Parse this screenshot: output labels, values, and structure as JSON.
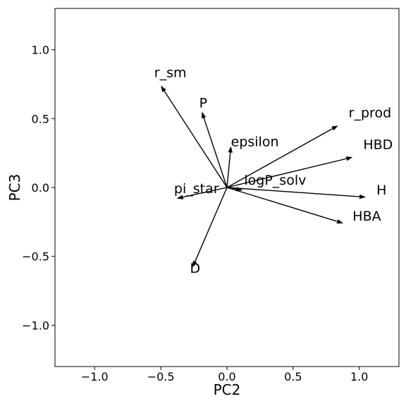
{
  "chart_data": {
    "type": "biplot",
    "xlabel": "PC2",
    "ylabel": "PC3",
    "xlim": [
      -1.3,
      1.3
    ],
    "ylim": [
      -1.3,
      1.3
    ],
    "xticks": [
      -1.0,
      -0.5,
      0.0,
      0.5,
      1.0
    ],
    "yticks": [
      -1.0,
      -0.5,
      0.0,
      0.5,
      1.0
    ],
    "xtick_labels": [
      "−1.0",
      "−0.5",
      "0.0",
      "0.5",
      "1.0"
    ],
    "ytick_labels": [
      "−1.0",
      "−0.5",
      "0.0",
      "0.5",
      "1.0"
    ],
    "grid": false,
    "vectors": [
      {
        "name": "r_sm",
        "x": -0.5,
        "y": 0.74,
        "label_x": -0.55,
        "label_y": 0.8
      },
      {
        "name": "P",
        "x": -0.19,
        "y": 0.55,
        "label_x": -0.21,
        "label_y": 0.58
      },
      {
        "name": "epsilon",
        "x": 0.03,
        "y": 0.3,
        "label_x": 0.03,
        "label_y": 0.3
      },
      {
        "name": "r_prod",
        "x": 0.84,
        "y": 0.45,
        "label_x": 0.92,
        "label_y": 0.51
      },
      {
        "name": "HBD",
        "x": 0.95,
        "y": 0.22,
        "label_x": 1.03,
        "label_y": 0.28
      },
      {
        "name": "H",
        "x": 1.05,
        "y": -0.07,
        "label_x": 1.13,
        "label_y": -0.05
      },
      {
        "name": "HBA",
        "x": 0.88,
        "y": -0.26,
        "label_x": 0.95,
        "label_y": -0.24
      },
      {
        "name": "logP_solv",
        "x": 0.12,
        "y": -0.02,
        "label_x": 0.13,
        "label_y": 0.02
      },
      {
        "name": "pi_star",
        "x": -0.38,
        "y": -0.08,
        "label_x": -0.4,
        "label_y": -0.04
      },
      {
        "name": "D",
        "x": -0.26,
        "y": -0.58,
        "label_x": -0.28,
        "label_y": -0.62
      }
    ]
  }
}
